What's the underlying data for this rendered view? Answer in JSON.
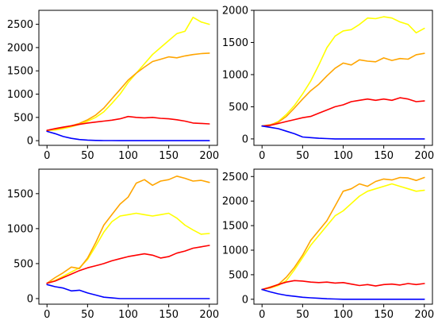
{
  "chart_data": [
    {
      "type": "line",
      "xlim": [
        -10,
        210
      ],
      "ylim": [
        -100,
        2800
      ],
      "xticks": [
        0,
        50,
        100,
        150,
        200
      ],
      "yticks": [
        0,
        500,
        1000,
        1500,
        2000,
        2500
      ],
      "grid": false,
      "series": [
        {
          "color": "#ffff00",
          "x": [
            0,
            10,
            20,
            30,
            40,
            50,
            60,
            70,
            80,
            90,
            100,
            110,
            120,
            130,
            140,
            150,
            160,
            170,
            180,
            190,
            200
          ],
          "values": [
            220,
            230,
            260,
            300,
            350,
            420,
            500,
            620,
            800,
            1000,
            1250,
            1450,
            1650,
            1850,
            2000,
            2150,
            2300,
            2350,
            2650,
            2550,
            2500
          ]
        },
        {
          "color": "#ffa500",
          "x": [
            0,
            10,
            20,
            30,
            40,
            50,
            60,
            70,
            80,
            90,
            100,
            110,
            120,
            130,
            140,
            150,
            160,
            170,
            180,
            190,
            200
          ],
          "values": [
            220,
            250,
            280,
            320,
            370,
            450,
            550,
            700,
            900,
            1100,
            1300,
            1450,
            1580,
            1700,
            1750,
            1800,
            1780,
            1820,
            1850,
            1870,
            1880
          ]
        },
        {
          "color": "#ff0000",
          "x": [
            0,
            10,
            20,
            30,
            40,
            50,
            60,
            70,
            80,
            90,
            100,
            110,
            120,
            130,
            140,
            150,
            160,
            170,
            180,
            190,
            200
          ],
          "values": [
            220,
            260,
            290,
            320,
            350,
            380,
            400,
            420,
            440,
            470,
            520,
            500,
            490,
            500,
            480,
            470,
            450,
            420,
            380,
            370,
            360
          ]
        },
        {
          "color": "#0000ff",
          "x": [
            0,
            10,
            20,
            30,
            40,
            50,
            60,
            70,
            80,
            90,
            100,
            110,
            120,
            130,
            140,
            150,
            160,
            170,
            180,
            190,
            200
          ],
          "values": [
            200,
            150,
            90,
            50,
            25,
            12,
            6,
            3,
            2,
            1,
            0,
            0,
            0,
            0,
            0,
            0,
            0,
            0,
            0,
            0,
            0
          ]
        }
      ]
    },
    {
      "type": "line",
      "xlim": [
        -10,
        210
      ],
      "ylim": [
        -100,
        2000
      ],
      "xticks": [
        0,
        50,
        100,
        150,
        200
      ],
      "yticks": [
        0,
        500,
        1000,
        1500,
        2000
      ],
      "grid": false,
      "series": [
        {
          "color": "#ffff00",
          "x": [
            0,
            10,
            20,
            30,
            40,
            50,
            60,
            70,
            80,
            90,
            100,
            110,
            120,
            130,
            140,
            150,
            160,
            170,
            180,
            190,
            200
          ],
          "values": [
            200,
            210,
            270,
            380,
            520,
            700,
            900,
            1150,
            1420,
            1600,
            1680,
            1700,
            1780,
            1880,
            1870,
            1900,
            1880,
            1820,
            1780,
            1650,
            1720
          ]
        },
        {
          "color": "#ffa500",
          "x": [
            0,
            10,
            20,
            30,
            40,
            50,
            60,
            70,
            80,
            90,
            100,
            110,
            120,
            130,
            140,
            150,
            160,
            170,
            180,
            190,
            200
          ],
          "values": [
            200,
            220,
            260,
            350,
            480,
            620,
            750,
            850,
            980,
            1100,
            1180,
            1150,
            1230,
            1210,
            1200,
            1260,
            1220,
            1250,
            1240,
            1310,
            1330
          ]
        },
        {
          "color": "#ff0000",
          "x": [
            0,
            10,
            20,
            30,
            40,
            50,
            60,
            70,
            80,
            90,
            100,
            110,
            120,
            130,
            140,
            150,
            160,
            170,
            180,
            190,
            200
          ],
          "values": [
            200,
            210,
            240,
            270,
            300,
            330,
            350,
            400,
            450,
            500,
            530,
            580,
            600,
            620,
            600,
            620,
            600,
            640,
            620,
            580,
            590
          ]
        },
        {
          "color": "#0000ff",
          "x": [
            0,
            10,
            20,
            30,
            40,
            50,
            60,
            70,
            80,
            90,
            100,
            110,
            120,
            130,
            140,
            150,
            160,
            170,
            180,
            190,
            200
          ],
          "values": [
            200,
            180,
            160,
            120,
            80,
            30,
            20,
            10,
            5,
            0,
            0,
            0,
            0,
            0,
            0,
            0,
            0,
            0,
            0,
            0,
            0
          ]
        }
      ]
    },
    {
      "type": "line",
      "xlim": [
        -10,
        210
      ],
      "ylim": [
        -80,
        1850
      ],
      "xticks": [
        0,
        50,
        100,
        150,
        200
      ],
      "yticks": [
        0,
        500,
        1000,
        1500
      ],
      "grid": false,
      "series": [
        {
          "color": "#ffff00",
          "x": [
            0,
            10,
            20,
            30,
            40,
            50,
            60,
            70,
            80,
            90,
            100,
            110,
            120,
            130,
            140,
            150,
            160,
            170,
            180,
            190,
            200
          ],
          "values": [
            220,
            260,
            320,
            380,
            440,
            560,
            750,
            950,
            1100,
            1180,
            1200,
            1220,
            1200,
            1180,
            1200,
            1220,
            1150,
            1050,
            980,
            920,
            930
          ]
        },
        {
          "color": "#ffa500",
          "x": [
            0,
            10,
            20,
            30,
            40,
            50,
            60,
            70,
            80,
            90,
            100,
            110,
            120,
            130,
            140,
            150,
            160,
            170,
            180,
            190,
            200
          ],
          "values": [
            220,
            300,
            370,
            450,
            430,
            580,
            800,
            1050,
            1200,
            1350,
            1450,
            1650,
            1700,
            1620,
            1680,
            1700,
            1750,
            1720,
            1680,
            1690,
            1660
          ]
        },
        {
          "color": "#ff0000",
          "x": [
            0,
            10,
            20,
            30,
            40,
            50,
            60,
            70,
            80,
            90,
            100,
            110,
            120,
            130,
            140,
            150,
            160,
            170,
            180,
            190,
            200
          ],
          "values": [
            220,
            250,
            300,
            350,
            400,
            440,
            470,
            500,
            540,
            570,
            600,
            620,
            640,
            620,
            580,
            600,
            650,
            680,
            720,
            740,
            760
          ]
        },
        {
          "color": "#0000ff",
          "x": [
            0,
            10,
            20,
            30,
            40,
            50,
            60,
            70,
            80,
            90,
            100,
            110,
            120,
            130,
            140,
            150,
            160,
            170,
            180,
            190,
            200
          ],
          "values": [
            200,
            170,
            150,
            110,
            120,
            80,
            50,
            20,
            10,
            0,
            0,
            0,
            0,
            0,
            0,
            0,
            0,
            0,
            0,
            0,
            0
          ]
        }
      ]
    },
    {
      "type": "line",
      "xlim": [
        -10,
        210
      ],
      "ylim": [
        -100,
        2650
      ],
      "xticks": [
        0,
        50,
        100,
        150,
        200
      ],
      "yticks": [
        0,
        500,
        1000,
        1500,
        2000,
        2500
      ],
      "grid": false,
      "series": [
        {
          "color": "#ffff00",
          "x": [
            0,
            10,
            20,
            30,
            40,
            50,
            60,
            70,
            80,
            90,
            100,
            110,
            120,
            130,
            140,
            150,
            160,
            170,
            180,
            190,
            200
          ],
          "values": [
            200,
            230,
            280,
            380,
            600,
            850,
            1100,
            1300,
            1500,
            1700,
            1800,
            1950,
            2100,
            2200,
            2250,
            2300,
            2350,
            2300,
            2250,
            2200,
            2220
          ]
        },
        {
          "color": "#ffa500",
          "x": [
            0,
            10,
            20,
            30,
            40,
            50,
            60,
            70,
            80,
            90,
            100,
            110,
            120,
            130,
            140,
            150,
            160,
            170,
            180,
            190,
            200
          ],
          "values": [
            200,
            250,
            300,
            450,
            650,
            900,
            1200,
            1400,
            1600,
            1900,
            2200,
            2250,
            2350,
            2300,
            2400,
            2450,
            2430,
            2480,
            2470,
            2420,
            2480
          ]
        },
        {
          "color": "#ff0000",
          "x": [
            0,
            10,
            20,
            30,
            40,
            50,
            60,
            70,
            80,
            90,
            100,
            110,
            120,
            130,
            140,
            150,
            160,
            170,
            180,
            190,
            200
          ],
          "values": [
            200,
            240,
            300,
            350,
            380,
            370,
            350,
            340,
            350,
            330,
            340,
            310,
            280,
            300,
            270,
            300,
            310,
            290,
            320,
            300,
            320
          ]
        },
        {
          "color": "#0000ff",
          "x": [
            0,
            10,
            20,
            30,
            40,
            50,
            60,
            70,
            80,
            90,
            100,
            110,
            120,
            130,
            140,
            150,
            160,
            170,
            180,
            190,
            200
          ],
          "values": [
            200,
            150,
            110,
            80,
            60,
            40,
            30,
            20,
            10,
            5,
            0,
            0,
            0,
            0,
            0,
            0,
            0,
            0,
            0,
            0,
            0
          ]
        }
      ]
    }
  ]
}
